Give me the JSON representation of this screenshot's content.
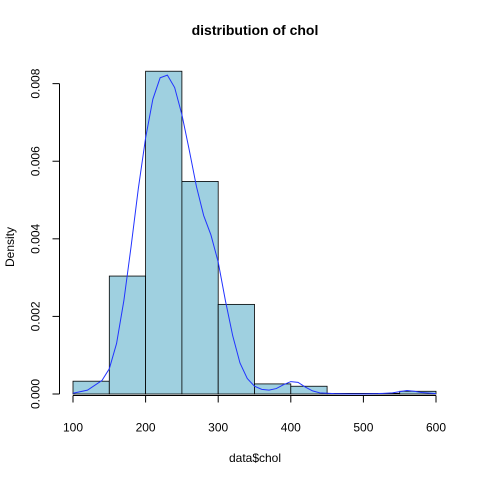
{
  "chart_data": {
    "type": "histogram",
    "title": "distribution of chol",
    "xlabel": "data$chol",
    "ylabel": "Density",
    "xlim": [
      100,
      600
    ],
    "ylim": [
      0,
      0.0083
    ],
    "x_ticks": [
      100,
      200,
      300,
      400,
      500,
      600
    ],
    "x_tick_labels": [
      "100",
      "200",
      "300",
      "400",
      "500",
      "600"
    ],
    "y_ticks": [
      0.0,
      0.002,
      0.004,
      0.006,
      0.008
    ],
    "y_tick_labels": [
      "0.000",
      "0.002",
      "0.004",
      "0.006",
      "0.008"
    ],
    "bars": [
      {
        "x0": 100,
        "x1": 150,
        "density": 0.00033
      },
      {
        "x0": 150,
        "x1": 200,
        "density": 0.00304
      },
      {
        "x0": 200,
        "x1": 250,
        "density": 0.00832
      },
      {
        "x0": 250,
        "x1": 300,
        "density": 0.00548
      },
      {
        "x0": 300,
        "x1": 350,
        "density": 0.00231
      },
      {
        "x0": 350,
        "x1": 400,
        "density": 0.00026
      },
      {
        "x0": 400,
        "x1": 450,
        "density": 0.0002
      },
      {
        "x0": 450,
        "x1": 500,
        "density": 0.0
      },
      {
        "x0": 500,
        "x1": 550,
        "density": 0.0
      },
      {
        "x0": 550,
        "x1": 600,
        "density": 7e-05
      }
    ],
    "density_curve": {
      "x": [
        100,
        120,
        140,
        150,
        160,
        170,
        180,
        190,
        200,
        210,
        220,
        230,
        240,
        250,
        260,
        270,
        280,
        290,
        300,
        310,
        320,
        330,
        340,
        350,
        360,
        370,
        380,
        390,
        400,
        410,
        420,
        430,
        440,
        460,
        480,
        500,
        520,
        540,
        550,
        560,
        570,
        580,
        600
      ],
      "y": [
        2e-05,
        0.0001,
        0.00035,
        0.00065,
        0.0013,
        0.0024,
        0.0038,
        0.0053,
        0.0066,
        0.0076,
        0.00815,
        0.00822,
        0.0079,
        0.0072,
        0.0063,
        0.00535,
        0.0046,
        0.0041,
        0.0034,
        0.0024,
        0.0015,
        0.0008,
        0.0004,
        0.0002,
        0.00012,
        0.0001,
        0.00014,
        0.00024,
        0.00032,
        0.0003,
        0.00018,
        8e-05,
        3e-05,
        1e-05,
        0.0,
        0.0,
        1e-05,
        3e-05,
        6e-05,
        9e-05,
        7e-05,
        4e-05,
        1e-05
      ]
    },
    "colors": {
      "bar_fill": "#9fd0e0",
      "bar_stroke": "#000000",
      "curve": "#2233ff",
      "axis": "#000000"
    },
    "grid": false,
    "legend": "none"
  }
}
